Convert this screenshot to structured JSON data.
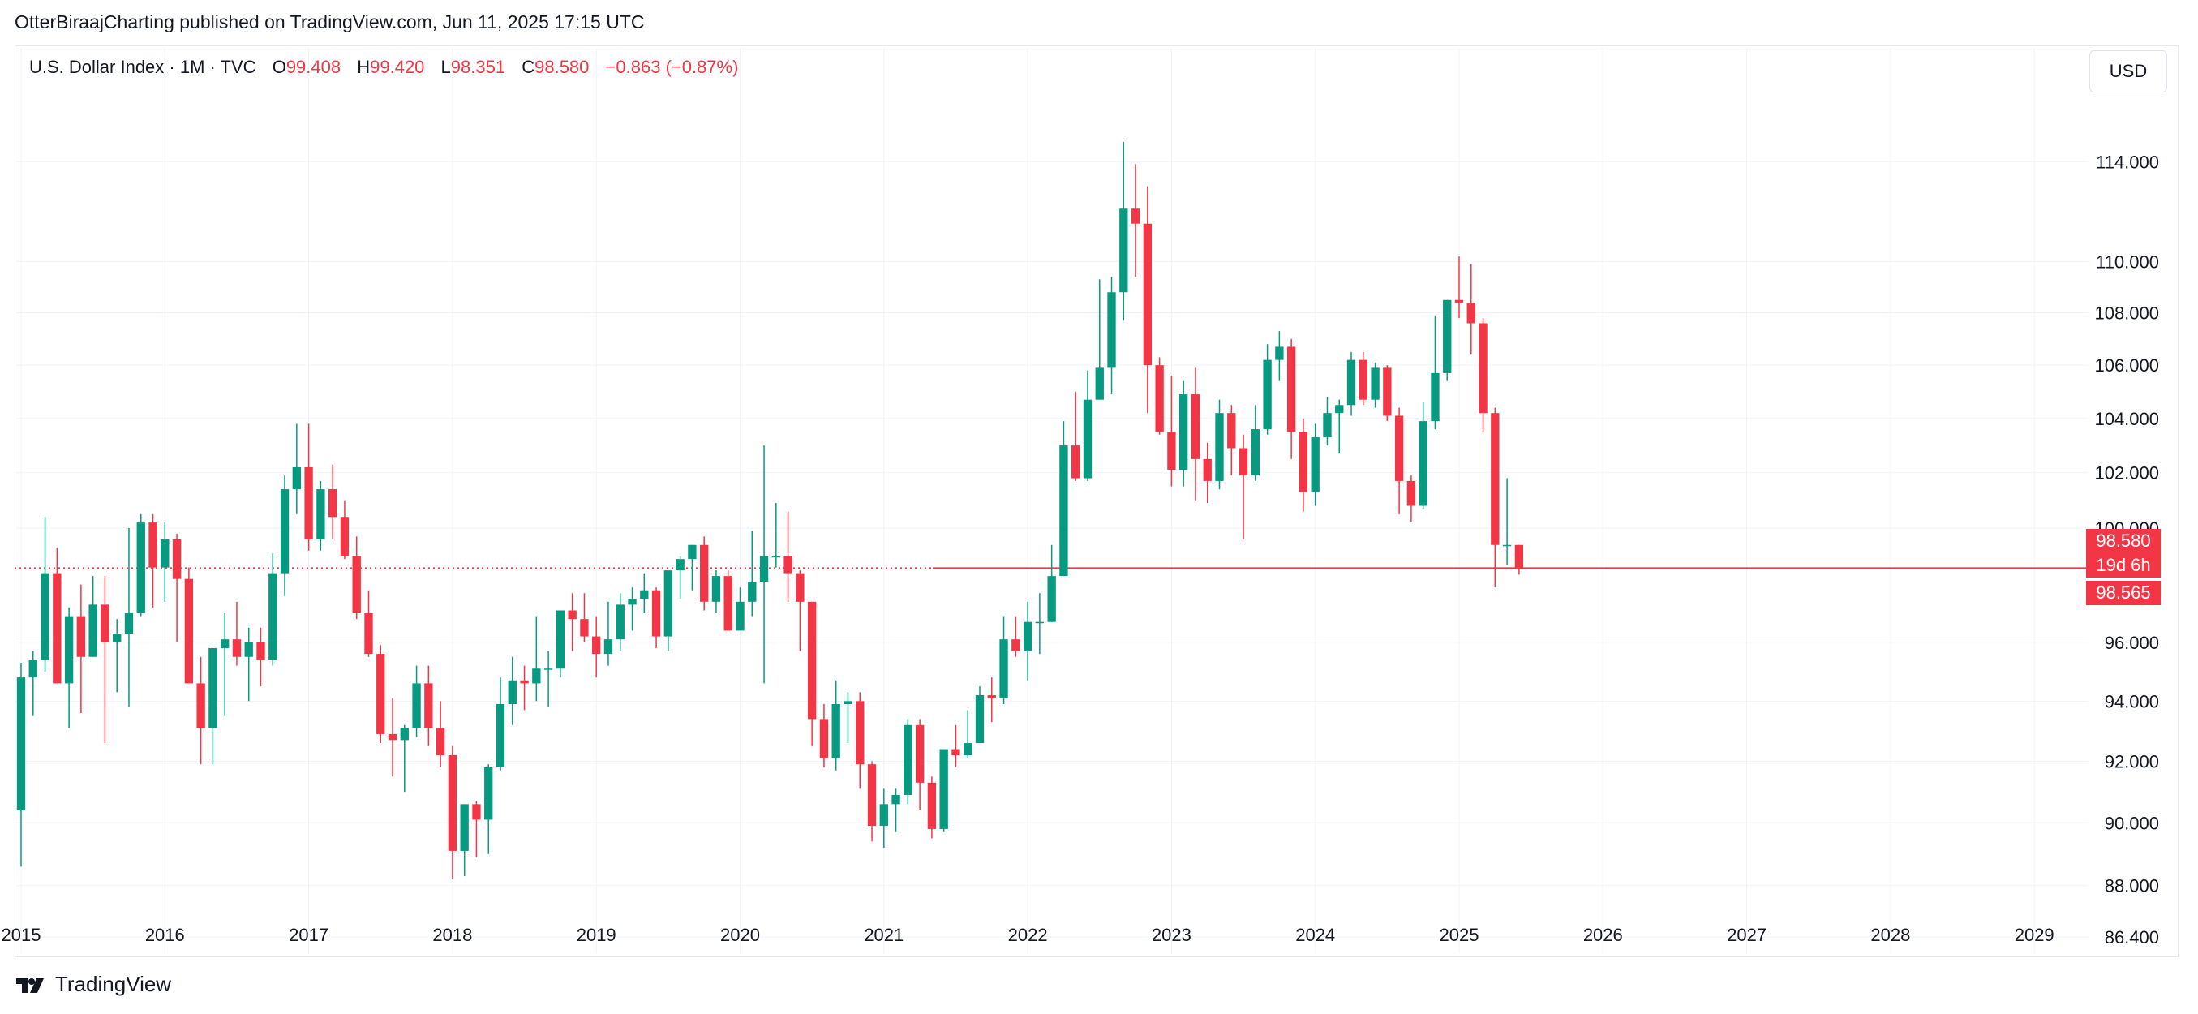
{
  "header": {
    "published_text": "OtterBiraajCharting published on TradingView.com, Jun 11, 2025 17:15 UTC"
  },
  "legend": {
    "symbol": "U.S. Dollar Index · 1M · TVC",
    "open_label": "O",
    "open": "99.408",
    "high_label": "H",
    "high": "99.420",
    "low_label": "L",
    "low": "98.351",
    "close_label": "C",
    "close": "98.580",
    "change": "−0.863 (−0.87%)"
  },
  "currency_button": "USD",
  "price_badges": {
    "last_price": "98.580",
    "countdown": "19d 6h",
    "mark_price": "98.565"
  },
  "branding": {
    "logo_text": "TradingView"
  },
  "colors": {
    "up": "#089981",
    "down": "#f23645",
    "grid": "#f0f3fa",
    "text": "#131722"
  },
  "chart_data": {
    "type": "candlestick",
    "title": "U.S. Dollar Index · 1M · TVC",
    "interval": "1M",
    "y_scale": "log",
    "y_range": [
      85.9,
      118.7
    ],
    "y_ticks": [
      "114.000",
      "110.000",
      "108.000",
      "106.000",
      "104.000",
      "102.000",
      "100.000",
      "96.000",
      "94.000",
      "92.000",
      "90.000",
      "88.000",
      "86.400"
    ],
    "x_ticks": [
      "2015",
      "2016",
      "2017",
      "2018",
      "2019",
      "2020",
      "2021",
      "2022",
      "2023",
      "2024",
      "2025",
      "2026",
      "2027",
      "2028",
      "2029"
    ],
    "current_price": 98.58,
    "mark_price": 98.565,
    "ohlc_start": "2015-01",
    "ohlc": [
      [
        90.4,
        95.3,
        88.6,
        94.8
      ],
      [
        94.8,
        95.7,
        93.5,
        95.4
      ],
      [
        95.4,
        100.4,
        95.0,
        98.4
      ],
      [
        98.4,
        99.3,
        94.6,
        94.6
      ],
      [
        94.6,
        97.2,
        93.1,
        96.9
      ],
      [
        96.9,
        98.0,
        93.6,
        95.5
      ],
      [
        95.5,
        98.3,
        95.5,
        97.3
      ],
      [
        97.3,
        98.3,
        92.6,
        96.0
      ],
      [
        96.0,
        96.8,
        94.3,
        96.3
      ],
      [
        96.3,
        100.0,
        93.8,
        97.0
      ],
      [
        97.0,
        100.5,
        96.9,
        100.2
      ],
      [
        100.2,
        100.5,
        97.2,
        98.6
      ],
      [
        98.6,
        100.2,
        97.4,
        99.6
      ],
      [
        99.6,
        99.8,
        96.0,
        98.2
      ],
      [
        98.2,
        98.6,
        94.6,
        94.6
      ],
      [
        94.6,
        95.5,
        91.9,
        93.1
      ],
      [
        93.1,
        95.8,
        91.9,
        95.8
      ],
      [
        95.8,
        97.0,
        93.5,
        96.1
      ],
      [
        96.1,
        97.4,
        95.2,
        95.5
      ],
      [
        95.5,
        96.5,
        94.0,
        96.0
      ],
      [
        96.0,
        96.5,
        94.5,
        95.4
      ],
      [
        95.4,
        99.1,
        95.2,
        98.4
      ],
      [
        98.4,
        101.9,
        97.6,
        101.4
      ],
      [
        101.4,
        103.8,
        100.5,
        102.2
      ],
      [
        102.2,
        103.8,
        99.2,
        99.6
      ],
      [
        99.6,
        101.7,
        99.2,
        101.4
      ],
      [
        101.4,
        102.3,
        99.6,
        100.4
      ],
      [
        100.4,
        101.0,
        98.9,
        99.0
      ],
      [
        99.0,
        99.7,
        96.8,
        97.0
      ],
      [
        97.0,
        97.8,
        95.5,
        95.6
      ],
      [
        95.6,
        95.9,
        92.6,
        92.9
      ],
      [
        92.9,
        94.1,
        91.5,
        92.7
      ],
      [
        92.7,
        93.2,
        91.0,
        93.1
      ],
      [
        93.1,
        95.2,
        92.8,
        94.6
      ],
      [
        94.6,
        95.2,
        92.5,
        93.1
      ],
      [
        93.1,
        94.0,
        91.8,
        92.2
      ],
      [
        92.2,
        92.5,
        88.2,
        89.1
      ],
      [
        89.1,
        90.6,
        88.3,
        90.6
      ],
      [
        90.6,
        90.7,
        88.9,
        90.1
      ],
      [
        90.1,
        91.9,
        89.0,
        91.8
      ],
      [
        91.8,
        94.8,
        91.7,
        93.9
      ],
      [
        93.9,
        95.5,
        93.2,
        94.7
      ],
      [
        94.7,
        95.2,
        93.7,
        94.6
      ],
      [
        94.6,
        96.9,
        94.0,
        95.1
      ],
      [
        95.1,
        95.7,
        93.8,
        95.1
      ],
      [
        95.1,
        97.0,
        94.8,
        97.1
      ],
      [
        97.1,
        97.7,
        95.7,
        96.8
      ],
      [
        96.8,
        97.7,
        96.0,
        96.2
      ],
      [
        96.2,
        96.9,
        94.8,
        95.6
      ],
      [
        95.6,
        97.4,
        95.2,
        96.1
      ],
      [
        96.1,
        97.7,
        95.7,
        97.3
      ],
      [
        97.3,
        97.9,
        96.4,
        97.5
      ],
      [
        97.5,
        98.4,
        97.0,
        97.8
      ],
      [
        97.8,
        97.9,
        95.8,
        96.2
      ],
      [
        96.2,
        98.5,
        95.7,
        98.5
      ],
      [
        98.5,
        99.0,
        97.5,
        98.9
      ],
      [
        98.9,
        99.4,
        97.8,
        99.4
      ],
      [
        99.4,
        99.7,
        97.1,
        97.4
      ],
      [
        97.4,
        98.5,
        97.0,
        98.3
      ],
      [
        98.3,
        98.5,
        96.4,
        96.4
      ],
      [
        96.4,
        97.9,
        96.4,
        97.4
      ],
      [
        97.4,
        99.9,
        96.9,
        98.1
      ],
      [
        98.1,
        103.0,
        94.6,
        99.0
      ],
      [
        99.0,
        100.9,
        98.6,
        99.0
      ],
      [
        99.0,
        100.6,
        97.4,
        98.4
      ],
      [
        98.4,
        98.5,
        95.7,
        97.4
      ],
      [
        97.4,
        97.4,
        92.5,
        93.4
      ],
      [
        93.4,
        93.9,
        91.8,
        92.1
      ],
      [
        92.1,
        94.7,
        91.7,
        93.9
      ],
      [
        93.9,
        94.3,
        92.6,
        94.0
      ],
      [
        94.0,
        94.3,
        91.1,
        91.9
      ],
      [
        91.9,
        92.0,
        89.4,
        89.9
      ],
      [
        89.9,
        91.1,
        89.2,
        90.6
      ],
      [
        90.6,
        91.1,
        89.7,
        90.9
      ],
      [
        90.9,
        93.4,
        90.6,
        93.2
      ],
      [
        93.2,
        93.4,
        90.4,
        91.3
      ],
      [
        91.3,
        91.5,
        89.5,
        89.8
      ],
      [
        89.8,
        92.4,
        89.7,
        92.4
      ],
      [
        92.4,
        93.2,
        91.8,
        92.2
      ],
      [
        92.2,
        93.7,
        92.1,
        92.6
      ],
      [
        92.6,
        94.5,
        92.6,
        94.2
      ],
      [
        94.2,
        94.8,
        93.3,
        94.1
      ],
      [
        94.1,
        96.9,
        93.9,
        96.1
      ],
      [
        96.1,
        96.9,
        95.5,
        95.7
      ],
      [
        95.7,
        97.4,
        94.7,
        96.7
      ],
      [
        96.7,
        97.7,
        95.6,
        96.7
      ],
      [
        96.7,
        99.4,
        96.7,
        98.3
      ],
      [
        98.3,
        103.9,
        98.3,
        103.0
      ],
      [
        103.0,
        105.0,
        101.7,
        101.8
      ],
      [
        101.8,
        105.8,
        101.7,
        104.7
      ],
      [
        104.7,
        109.3,
        104.7,
        105.9
      ],
      [
        105.9,
        109.4,
        104.9,
        108.8
      ],
      [
        108.8,
        114.8,
        107.7,
        112.1
      ],
      [
        112.1,
        113.9,
        109.4,
        111.5
      ],
      [
        111.5,
        113.0,
        104.2,
        106.0
      ],
      [
        106.0,
        106.3,
        103.4,
        103.5
      ],
      [
        103.5,
        105.6,
        101.5,
        102.1
      ],
      [
        102.1,
        105.4,
        101.5,
        104.9
      ],
      [
        104.9,
        105.9,
        101.0,
        102.5
      ],
      [
        102.5,
        103.1,
        100.9,
        101.7
      ],
      [
        101.7,
        104.7,
        101.4,
        104.2
      ],
      [
        104.2,
        104.5,
        101.9,
        102.9
      ],
      [
        102.9,
        103.4,
        99.6,
        101.9
      ],
      [
        101.9,
        104.5,
        101.7,
        103.6
      ],
      [
        103.6,
        106.8,
        103.4,
        106.2
      ],
      [
        106.2,
        107.3,
        105.4,
        106.7
      ],
      [
        106.7,
        107.0,
        102.5,
        103.5
      ],
      [
        103.5,
        104.0,
        100.6,
        101.3
      ],
      [
        101.3,
        103.8,
        100.8,
        103.3
      ],
      [
        103.3,
        104.8,
        103.0,
        104.2
      ],
      [
        104.2,
        104.7,
        102.7,
        104.5
      ],
      [
        104.5,
        106.5,
        104.1,
        106.2
      ],
      [
        106.2,
        106.5,
        104.5,
        104.7
      ],
      [
        104.7,
        106.1,
        104.4,
        105.9
      ],
      [
        105.9,
        106.0,
        103.9,
        104.1
      ],
      [
        104.1,
        104.4,
        100.5,
        101.7
      ],
      [
        101.7,
        101.9,
        100.2,
        100.8
      ],
      [
        100.8,
        104.6,
        100.7,
        103.9
      ],
      [
        103.9,
        107.9,
        103.6,
        105.7
      ],
      [
        105.7,
        108.5,
        105.4,
        108.5
      ],
      [
        108.5,
        110.2,
        107.8,
        108.4
      ],
      [
        108.4,
        109.9,
        106.4,
        107.6
      ],
      [
        107.6,
        107.8,
        103.5,
        104.2
      ],
      [
        104.2,
        104.4,
        97.9,
        99.4
      ],
      [
        99.4,
        101.8,
        98.7,
        99.4
      ],
      [
        99.4,
        99.4,
        98.35,
        98.58
      ]
    ]
  }
}
